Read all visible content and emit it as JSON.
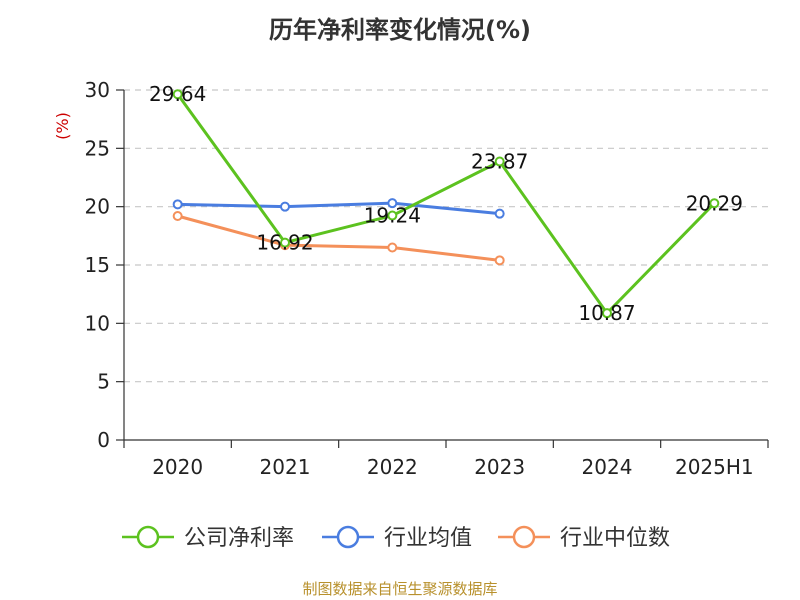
{
  "title": "历年净利率变化情况(%)",
  "source": "制图数据来自恒生聚源数据库",
  "chart_data": {
    "type": "line",
    "ylabel": "(%)",
    "ylim": [
      0,
      30
    ],
    "yticks": [
      0,
      5,
      10,
      15,
      20,
      25,
      30
    ],
    "categories": [
      "2020",
      "2021",
      "2022",
      "2023",
      "2024",
      "2025H1"
    ],
    "grid": true,
    "legend_position": "bottom",
    "series": [
      {
        "name": "公司净利率",
        "color": "#5cc21f",
        "values": [
          29.64,
          16.92,
          19.24,
          23.87,
          10.87,
          20.29
        ],
        "labels": true
      },
      {
        "name": "行业均值",
        "color": "#4a7de0",
        "values": [
          20.2,
          20.0,
          20.3,
          19.4,
          null,
          null
        ],
        "labels": false
      },
      {
        "name": "行业中位数",
        "color": "#f4905a",
        "values": [
          19.2,
          16.7,
          16.5,
          15.4,
          null,
          null
        ],
        "labels": false
      }
    ]
  }
}
